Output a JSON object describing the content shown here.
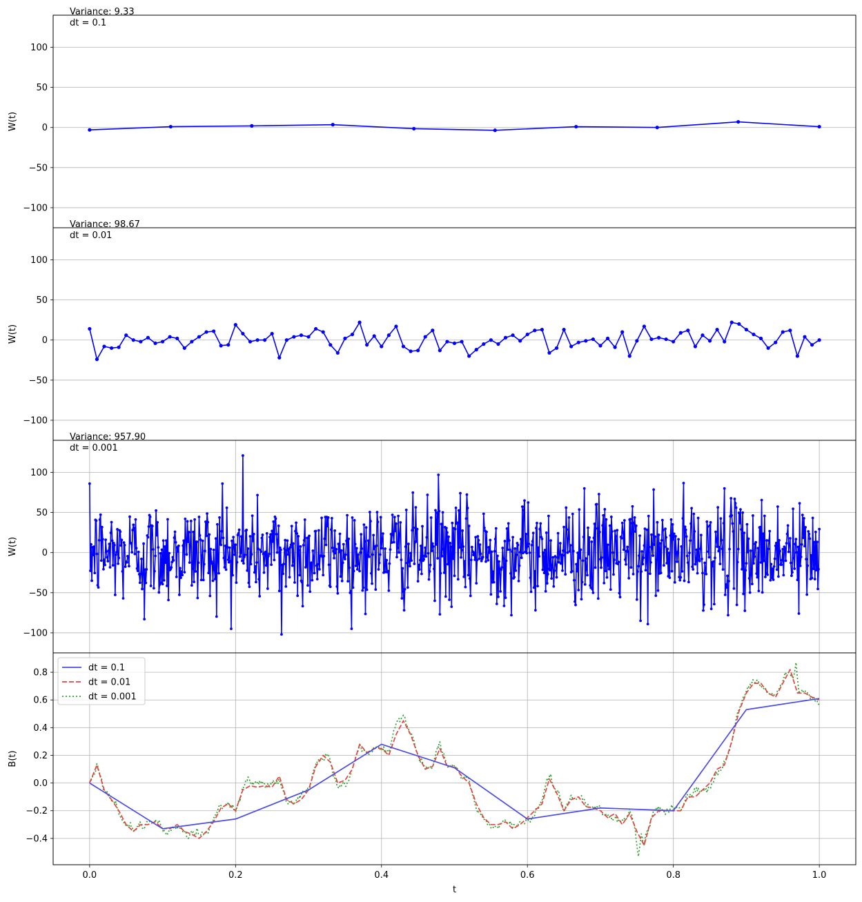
{
  "chart_data": [
    {
      "type": "line",
      "ylabel": "W(t)",
      "annotation_lines": [
        "Variance: 9.33",
        "dt = 0.1"
      ],
      "xlim": [
        -0.05,
        1.05
      ],
      "ylim": [
        -125,
        140
      ],
      "yticks": [
        -100,
        -50,
        0,
        50,
        100
      ],
      "ytick_labels": [
        "−100",
        "−50",
        "0",
        "50",
        "100"
      ],
      "ygrid": true,
      "xgrid": false,
      "color": "#0000ff",
      "markers": true,
      "series": [
        {
          "x": [
            0.0,
            0.1111,
            0.2222,
            0.3333,
            0.4444,
            0.5556,
            0.6667,
            0.7778,
            0.8889,
            1.0
          ],
          "y": [
            -3,
            1,
            2,
            3.5,
            -1.5,
            -3.5,
            1,
            0,
            7,
            1
          ]
        }
      ]
    },
    {
      "type": "line",
      "ylabel": "W(t)",
      "annotation_lines": [
        "Variance: 98.67",
        "dt = 0.01"
      ],
      "xlim": [
        -0.05,
        1.05
      ],
      "ylim": [
        -125,
        140
      ],
      "yticks": [
        -100,
        -50,
        0,
        50,
        100
      ],
      "ytick_labels": [
        "−100",
        "−50",
        "0",
        "50",
        "100"
      ],
      "ygrid": true,
      "xgrid": false,
      "color": "#0000ff",
      "markers": true,
      "n_points": 101,
      "series": [
        {
          "x_start": 0.0,
          "x_step": 0.01,
          "y": [
            14,
            -24,
            -8,
            -10,
            -9,
            6,
            0,
            -2,
            3,
            -4,
            -2,
            4,
            2,
            -10,
            -2,
            4,
            10,
            11,
            -7,
            -6,
            19,
            8,
            -2,
            0,
            0,
            8,
            -22,
            0,
            4,
            6,
            4,
            14,
            10,
            -6,
            -16,
            2,
            7,
            22,
            -6,
            5,
            -8,
            6,
            17,
            -8,
            -14,
            -13,
            4,
            12,
            -13,
            -2,
            -4,
            -2,
            -20,
            -12,
            -5,
            0,
            -5,
            3,
            6,
            -1,
            7,
            12,
            13,
            -16,
            -10,
            13,
            -8,
            -3,
            -1,
            1,
            -7,
            2,
            -9,
            10,
            -20,
            -1,
            17,
            1,
            3,
            1,
            -2,
            9,
            12,
            -8,
            6,
            -1,
            13,
            -2,
            22,
            20,
            13,
            7,
            2,
            -10,
            -3,
            10,
            12,
            -20,
            4,
            -6,
            0
          ]
        }
      ]
    },
    {
      "type": "line",
      "ylabel": "W(t)",
      "annotation_lines": [
        "Variance: 957.90",
        "dt = 0.001"
      ],
      "xlim": [
        -0.05,
        1.05
      ],
      "ylim": [
        -125,
        140
      ],
      "yticks": [
        -100,
        -50,
        0,
        50,
        100
      ],
      "ytick_labels": [
        "−100",
        "−50",
        "0",
        "50",
        "100"
      ],
      "ygrid": true,
      "xgrid": true,
      "color": "#0000ff",
      "markers": true,
      "n_points": 1001,
      "y_std": 31,
      "extremes": [
        {
          "x": 0.21,
          "y": 121
        },
        {
          "x": 0.263,
          "y": -102
        },
        {
          "x": 0.478,
          "y": 97
        },
        {
          "x": 0.075,
          "y": -83
        },
        {
          "x": 0.755,
          "y": -85
        },
        {
          "x": 0.182,
          "y": 86
        },
        {
          "x": 0.678,
          "y": 80
        },
        {
          "x": 0.87,
          "y": 80
        },
        {
          "x": 0.972,
          "y": -76
        }
      ]
    },
    {
      "type": "line",
      "ylabel": "B(t)",
      "xlabel": "t",
      "xlim": [
        -0.05,
        1.05
      ],
      "ylim": [
        -0.59,
        0.94
      ],
      "xticks": [
        0.0,
        0.2,
        0.4,
        0.6,
        0.8,
        1.0
      ],
      "xtick_labels": [
        "0.0",
        "0.2",
        "0.4",
        "0.6",
        "0.8",
        "1.0"
      ],
      "yticks": [
        -0.4,
        -0.2,
        0.0,
        0.2,
        0.4,
        0.6,
        0.8
      ],
      "ytick_labels": [
        "−0.4",
        "−0.2",
        "0.0",
        "0.2",
        "0.4",
        "0.6",
        "0.8"
      ],
      "ygrid": true,
      "xgrid": true,
      "legend_position": "upper-left",
      "series": [
        {
          "name": "dt = 0.1",
          "color": "#4a4ae8",
          "style": "solid",
          "x": [
            0.0,
            0.1,
            0.2,
            0.3,
            0.4,
            0.5,
            0.6,
            0.7,
            0.8,
            0.9,
            1.0
          ],
          "y": [
            0.0,
            -0.33,
            -0.26,
            -0.05,
            0.28,
            0.11,
            -0.26,
            -0.18,
            -0.2,
            0.53,
            0.61
          ]
        },
        {
          "name": "dt = 0.01",
          "color": "#e8413f",
          "style": "dashed",
          "x_start": 0.0,
          "x_step": 0.01,
          "y": [
            0.0,
            0.13,
            -0.05,
            -0.12,
            -0.2,
            -0.3,
            -0.35,
            -0.3,
            -0.3,
            -0.28,
            -0.33,
            -0.33,
            -0.3,
            -0.35,
            -0.37,
            -0.4,
            -0.35,
            -0.28,
            -0.18,
            -0.15,
            -0.2,
            -0.05,
            -0.02,
            -0.03,
            -0.02,
            -0.03,
            0.05,
            -0.12,
            -0.15,
            -0.12,
            -0.05,
            0.12,
            0.2,
            0.15,
            0.0,
            0.02,
            0.1,
            0.28,
            0.22,
            0.25,
            0.25,
            0.2,
            0.35,
            0.45,
            0.35,
            0.2,
            0.1,
            0.12,
            0.25,
            0.12,
            0.12,
            0.05,
            0.0,
            -0.15,
            -0.25,
            -0.3,
            -0.3,
            -0.28,
            -0.33,
            -0.3,
            -0.25,
            -0.2,
            -0.15,
            0.03,
            -0.07,
            -0.2,
            -0.12,
            -0.1,
            -0.17,
            -0.18,
            -0.2,
            -0.25,
            -0.22,
            -0.3,
            -0.22,
            -0.35,
            -0.45,
            -0.25,
            -0.2,
            -0.2,
            -0.2,
            -0.2,
            -0.1,
            -0.1,
            -0.05,
            0.0,
            0.1,
            0.13,
            0.3,
            0.52,
            0.65,
            0.72,
            0.72,
            0.65,
            0.62,
            0.72,
            0.82,
            0.65,
            0.65,
            0.62,
            0.6
          ]
        },
        {
          "name": "dt = 0.001",
          "color": "#2ca02c",
          "style": "dotted",
          "x_start": 0.0,
          "x_step": 0.001,
          "noise": 0.025,
          "extremes": [
            {
              "x": 0.752,
              "y": -0.53
            },
            {
              "x": 0.968,
              "y": 0.87
            },
            {
              "x": 0.43,
              "y": 0.49
            }
          ]
        }
      ]
    }
  ]
}
